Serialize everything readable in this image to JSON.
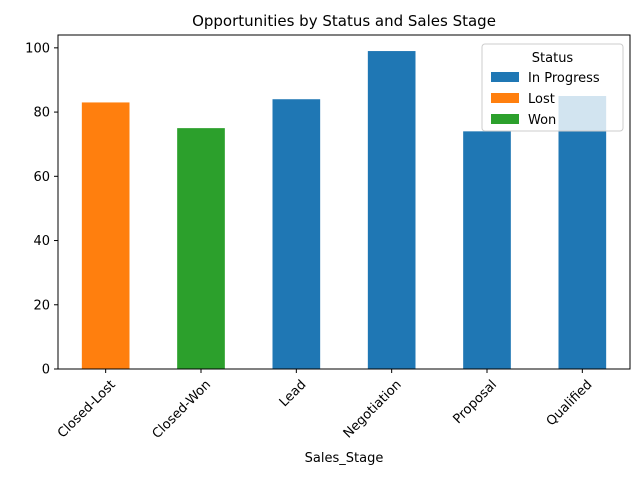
{
  "chart_data": {
    "type": "bar",
    "stacked": true,
    "title": "Opportunities by Status and Sales Stage",
    "xlabel": "Sales_Stage",
    "ylabel": "",
    "categories": [
      "Closed-Lost",
      "Closed-Won",
      "Lead",
      "Negotiation",
      "Proposal",
      "Qualified"
    ],
    "series": [
      {
        "name": "In Progress",
        "color": "#1f77b4",
        "values": [
          0,
          0,
          84,
          99,
          74,
          85
        ]
      },
      {
        "name": "Lost",
        "color": "#ff7f0e",
        "values": [
          83,
          0,
          0,
          0,
          0,
          0
        ]
      },
      {
        "name": "Won",
        "color": "#2ca02c",
        "values": [
          0,
          75,
          0,
          0,
          0,
          0
        ]
      }
    ],
    "ylim": [
      0,
      104
    ],
    "yticks": [
      0,
      20,
      40,
      60,
      80,
      100
    ],
    "xtick_rotation": 45,
    "grid": false,
    "legend": {
      "title": "Status",
      "placement": "top-right"
    }
  }
}
